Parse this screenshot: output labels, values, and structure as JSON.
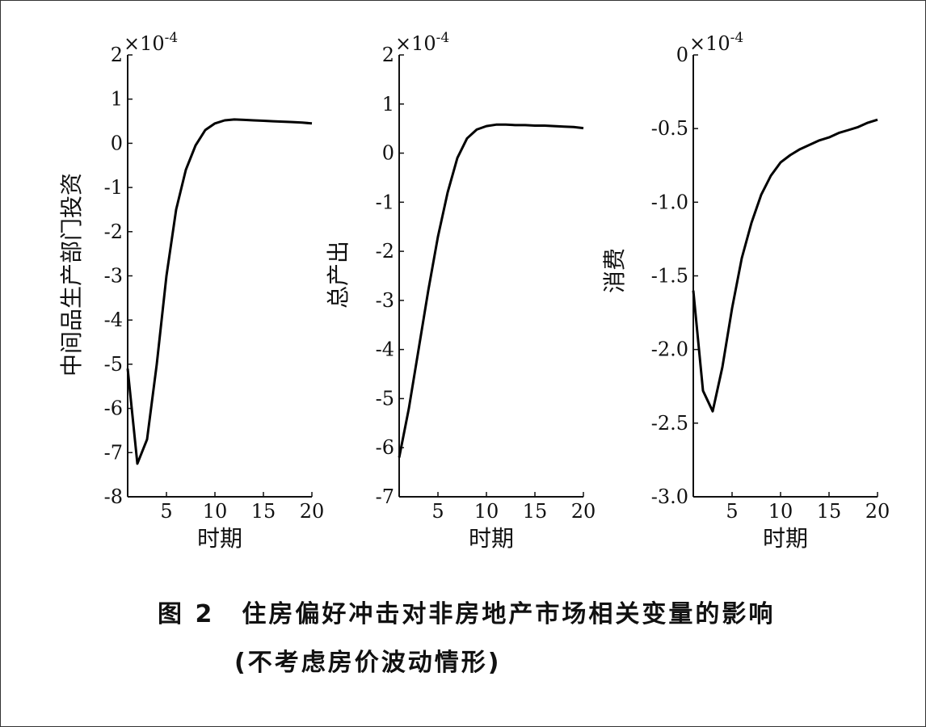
{
  "figure": {
    "caption_number": "图 2",
    "caption_title": "住房偏好冲击对非房地产市场相关变量的影响",
    "caption_sub": "(不考虑房价波动情形)"
  },
  "chart_data": [
    {
      "type": "line",
      "ylabel": "中间品生产部门投资",
      "xlabel": "时期",
      "exponent_label": "×10",
      "exponent_power": "-4",
      "xlim": [
        1,
        20
      ],
      "ylim": [
        -8,
        2
      ],
      "xticks": [
        5,
        10,
        15,
        20
      ],
      "yticks": [
        2,
        1,
        0,
        -1,
        -2,
        -3,
        -4,
        -5,
        -6,
        -7,
        -8
      ],
      "ytick_labels": [
        "2",
        "1",
        "0",
        "-1",
        "-2",
        "-3",
        "-4",
        "-5",
        "-6",
        "-7",
        "-8"
      ],
      "series": [
        {
          "x": [
            1,
            2,
            3,
            4,
            5,
            6,
            7,
            8,
            9,
            10,
            11,
            12,
            13,
            14,
            15,
            16,
            17,
            18,
            19,
            20
          ],
          "values": [
            -5.1,
            -7.25,
            -6.7,
            -5.0,
            -3.0,
            -1.5,
            -0.6,
            -0.05,
            0.3,
            0.45,
            0.52,
            0.54,
            0.53,
            0.52,
            0.51,
            0.5,
            0.49,
            0.48,
            0.47,
            0.45
          ]
        }
      ]
    },
    {
      "type": "line",
      "ylabel": "总产出",
      "xlabel": "时期",
      "exponent_label": "×10",
      "exponent_power": "-4",
      "xlim": [
        1,
        20
      ],
      "ylim": [
        -7,
        2
      ],
      "xticks": [
        5,
        10,
        15,
        20
      ],
      "yticks": [
        2,
        1,
        0,
        -1,
        -2,
        -3,
        -4,
        -5,
        -6,
        -7
      ],
      "ytick_labels": [
        "2",
        "1",
        "0",
        "-1",
        "-2",
        "-3",
        "-4",
        "-5",
        "-6",
        "-7"
      ],
      "series": [
        {
          "x": [
            1,
            2,
            3,
            4,
            5,
            6,
            7,
            8,
            9,
            10,
            11,
            12,
            13,
            14,
            15,
            16,
            17,
            18,
            19,
            20
          ],
          "values": [
            -6.2,
            -5.2,
            -4.0,
            -2.8,
            -1.7,
            -0.8,
            -0.1,
            0.3,
            0.48,
            0.55,
            0.58,
            0.58,
            0.57,
            0.57,
            0.56,
            0.56,
            0.55,
            0.54,
            0.53,
            0.51
          ]
        }
      ]
    },
    {
      "type": "line",
      "ylabel": "消费",
      "xlabel": "时期",
      "exponent_label": "×10",
      "exponent_power": "-4",
      "xlim": [
        1,
        20
      ],
      "ylim": [
        -3.0,
        0
      ],
      "xticks": [
        5,
        10,
        15,
        20
      ],
      "yticks": [
        0,
        -0.5,
        -1.0,
        -1.5,
        -2.0,
        -2.5,
        -3.0
      ],
      "ytick_labels": [
        "0",
        "-0.5",
        "-1.0",
        "-1.5",
        "-2.0",
        "-2.5",
        "-3.0"
      ],
      "series": [
        {
          "x": [
            1,
            2,
            3,
            4,
            5,
            6,
            7,
            8,
            9,
            10,
            11,
            12,
            13,
            14,
            15,
            16,
            17,
            18,
            19,
            20
          ],
          "values": [
            -1.6,
            -2.28,
            -2.42,
            -2.12,
            -1.72,
            -1.38,
            -1.14,
            -0.95,
            -0.82,
            -0.73,
            -0.68,
            -0.64,
            -0.61,
            -0.58,
            -0.56,
            -0.53,
            -0.51,
            -0.49,
            -0.46,
            -0.44
          ]
        }
      ]
    }
  ]
}
